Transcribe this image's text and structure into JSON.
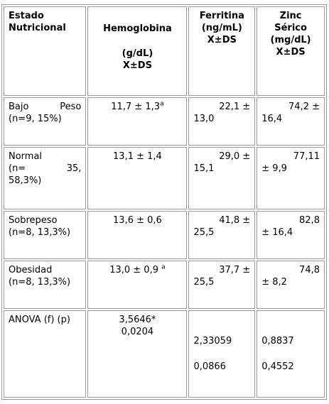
{
  "headers": {
    "col1_line1": "Estado",
    "col1_line2": "Nutricional",
    "col2_line1": "Hemoglobina",
    "col2_line2": "(g/dL)",
    "col2_line3": "X±DS",
    "col3_line1": "Ferritina",
    "col3_line2": "(ng/mL)",
    "col3_line3": "X±DS",
    "col4_line1": "Zinc",
    "col4_line2": "Sérico",
    "col4_line3": "(mg/dL)",
    "col4_line4": "X±DS"
  },
  "rows": [
    {
      "label_a": "Bajo",
      "label_b": "Peso",
      "label_c": "(n=9, 15%)",
      "hb": "11,7 ± 1,3",
      "hb_sup": "a",
      "fer_a": "22,1  ±",
      "fer_b": "13,0",
      "zn_a": "74,2 ±",
      "zn_b": "16,4"
    },
    {
      "label_a": "Normal",
      "label_b1": "(n=",
      "label_b2": "35,",
      "label_c": "58,3%)",
      "hb": "13,1 ± 1,4",
      "fer_a": "29,0  ±",
      "fer_b": "15,1",
      "zn_a": "77,11",
      "zn_b": "± 9,9"
    },
    {
      "label_a": "Sobrepeso",
      "label_c": "(n=8, 13,3%)",
      "hb": "13,6 ± 0,6",
      "fer_a": "41,8  ±",
      "fer_b": "25,5",
      "zn_a": "82,8",
      "zn_b": "± 16,4"
    },
    {
      "label_a": "Obesidad",
      "label_c": "(n=8, 13,3%)",
      "hb": "13,0 ± 0,9",
      "hb_sup": "a",
      "fer_a": "37,7  ±",
      "fer_b": "25,5",
      "zn_a": "74,8",
      "zn_b": "± 8,2"
    }
  ],
  "anova": {
    "label": "ANOVA (f)  (p)",
    "hb_f": "3,5646*",
    "hb_p": "0,0204",
    "fer_f": "2,33059",
    "fer_p": "0,0866",
    "zn_f": "0,8837",
    "zn_p": "0,4552"
  }
}
